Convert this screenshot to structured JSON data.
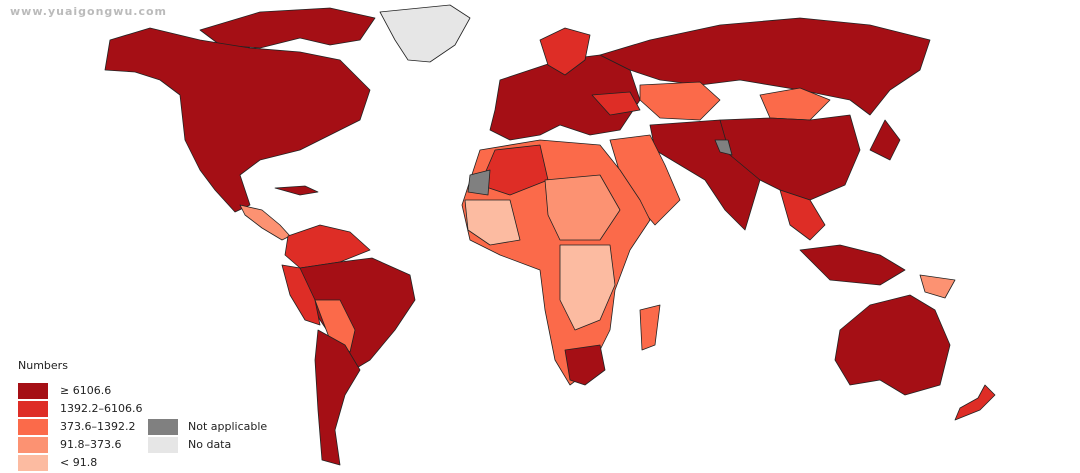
{
  "watermark": "www.yuaigongwu.com",
  "legend": {
    "title": "Numbers",
    "items": [
      {
        "label": "≥ 6106.6",
        "color": "#a50f15"
      },
      {
        "label": "1392.2–6106.6",
        "color": "#de2d26"
      },
      {
        "label": "373.6–1392.2",
        "color": "#fb6a4a"
      },
      {
        "label": "91.8–373.6",
        "color": "#fc9272"
      },
      {
        "label": "< 91.8",
        "color": "#fcbba1"
      },
      {
        "label": "Not applicable",
        "color": "#808080"
      },
      {
        "label": "No data",
        "color": "#e6e6e6"
      }
    ]
  }
}
